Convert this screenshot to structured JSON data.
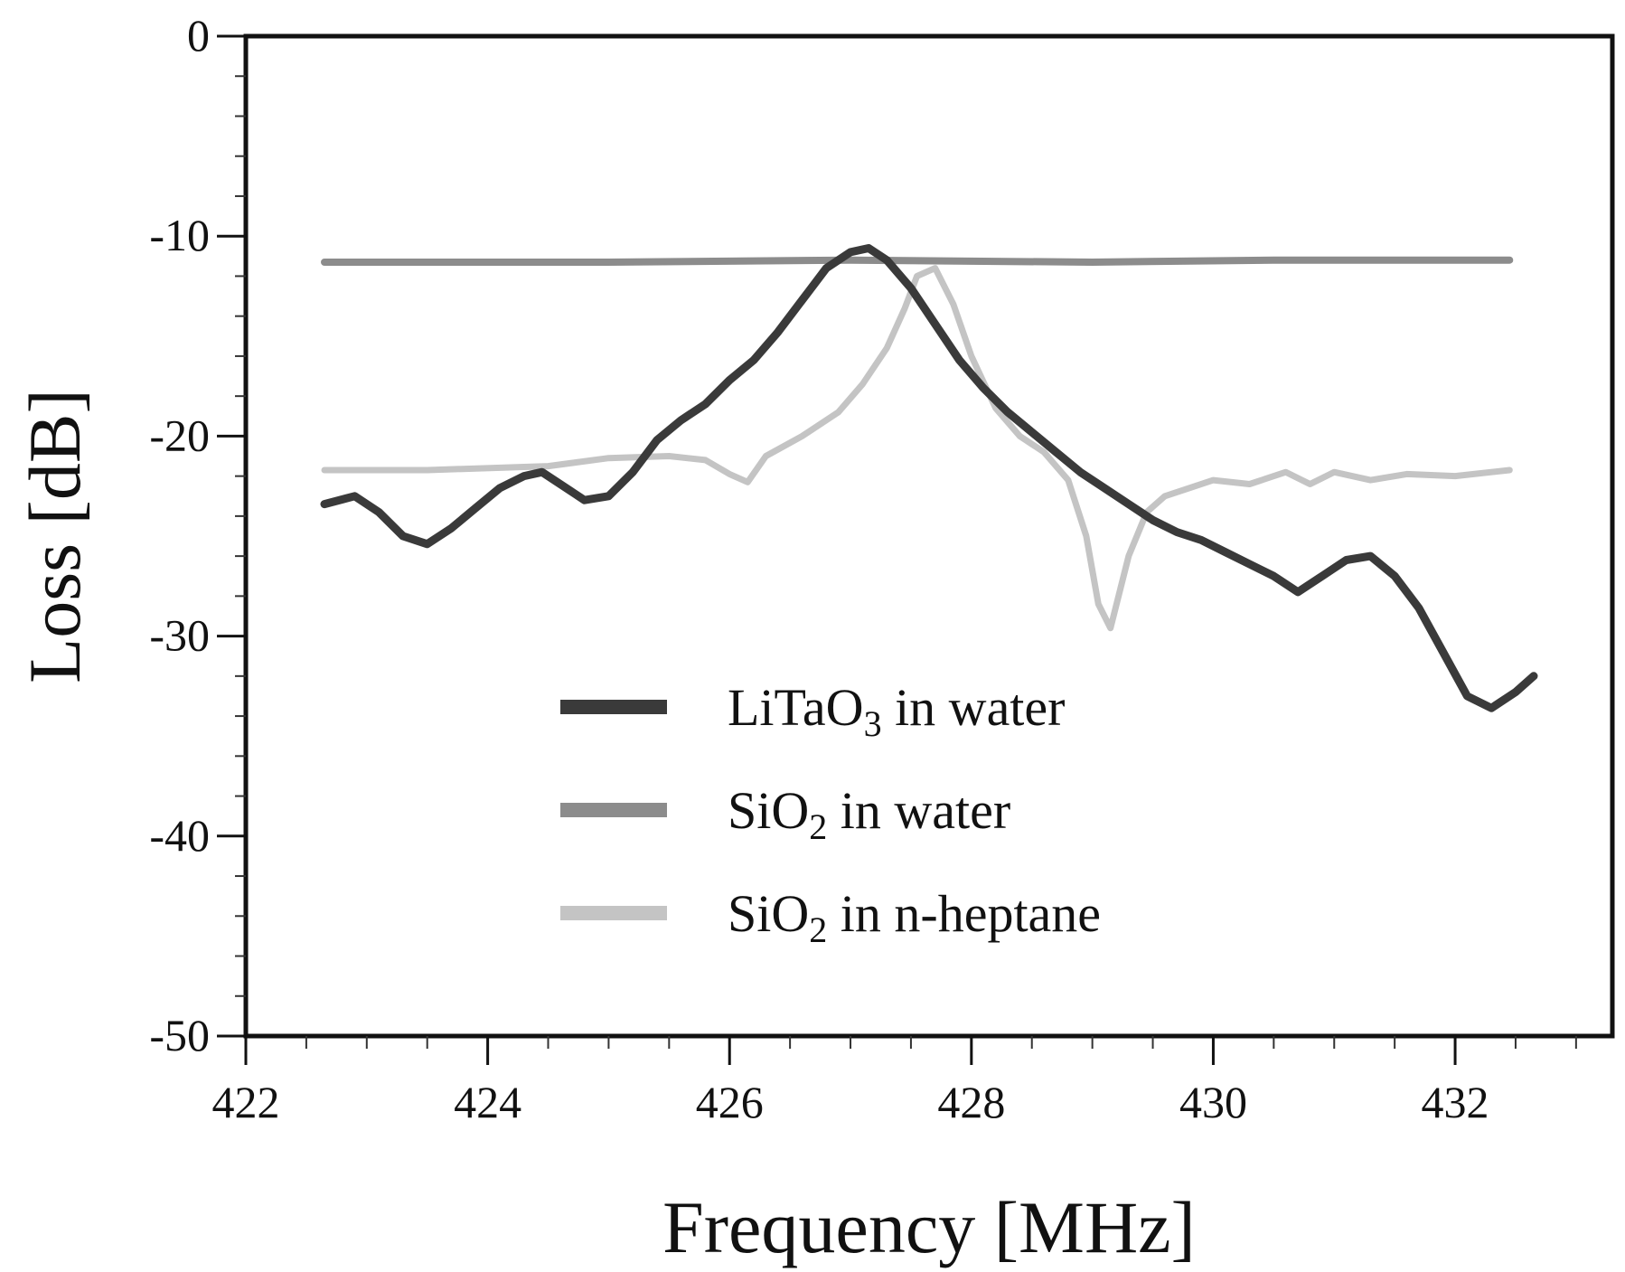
{
  "chart_data": {
    "type": "line",
    "title": "",
    "xlabel": "Frequency [MHz]",
    "ylabel": "Loss [dB]",
    "xlim": [
      422,
      433.3
    ],
    "ylim": [
      -50,
      0
    ],
    "xticks": [
      422,
      424,
      426,
      428,
      430,
      432
    ],
    "xtick_labels": [
      "422",
      "424",
      "426",
      "428",
      "430",
      "432"
    ],
    "yticks": [
      0,
      -10,
      -20,
      -30,
      -40,
      -50
    ],
    "ytick_labels": [
      "0",
      "-10",
      "-20",
      "-30",
      "-40",
      "-50"
    ],
    "grid": false,
    "legend_position": "lower-center",
    "series": [
      {
        "name": "LiTaO3 in water",
        "label_parts": [
          "LiTaO",
          "3",
          " in water"
        ],
        "color": "#3a3a3a",
        "x": [
          422.65,
          422.9,
          423.1,
          423.3,
          423.5,
          423.7,
          423.9,
          424.1,
          424.3,
          424.45,
          424.6,
          424.8,
          425.0,
          425.2,
          425.4,
          425.6,
          425.8,
          426.0,
          426.2,
          426.4,
          426.6,
          426.8,
          427.0,
          427.15,
          427.3,
          427.5,
          427.7,
          427.9,
          428.1,
          428.3,
          428.5,
          428.7,
          428.9,
          429.1,
          429.3,
          429.5,
          429.7,
          429.9,
          430.1,
          430.3,
          430.5,
          430.7,
          430.9,
          431.1,
          431.3,
          431.5,
          431.7,
          431.9,
          432.1,
          432.3,
          432.5,
          432.65
        ],
        "values": [
          -23.4,
          -23.0,
          -23.8,
          -25.0,
          -25.4,
          -24.6,
          -23.6,
          -22.6,
          -22.0,
          -21.8,
          -22.4,
          -23.2,
          -23.0,
          -21.8,
          -20.2,
          -19.2,
          -18.4,
          -17.2,
          -16.2,
          -14.8,
          -13.2,
          -11.6,
          -10.8,
          -10.6,
          -11.2,
          -12.6,
          -14.4,
          -16.2,
          -17.6,
          -18.8,
          -19.8,
          -20.8,
          -21.8,
          -22.6,
          -23.4,
          -24.2,
          -24.8,
          -25.2,
          -25.8,
          -26.4,
          -27.0,
          -27.8,
          -27.0,
          -26.2,
          -26.0,
          -27.0,
          -28.6,
          -30.8,
          -33.0,
          -33.6,
          -32.8,
          -32.0
        ]
      },
      {
        "name": "SiO2 in water",
        "label_parts": [
          "SiO",
          "2",
          " in water"
        ],
        "color": "#8c8c8c",
        "x": [
          422.65,
          425.0,
          427.0,
          429.0,
          430.5,
          432.45
        ],
        "values": [
          -11.3,
          -11.3,
          -11.2,
          -11.3,
          -11.2,
          -11.2
        ]
      },
      {
        "name": "SiO2 in n-heptane",
        "label_parts": [
          "SiO",
          "2",
          " in n-heptane"
        ],
        "color": "#c4c4c4",
        "x": [
          422.65,
          423.5,
          424.5,
          425.0,
          425.5,
          425.8,
          426.0,
          426.15,
          426.3,
          426.6,
          426.9,
          427.1,
          427.3,
          427.45,
          427.55,
          427.7,
          427.85,
          428.0,
          428.2,
          428.4,
          428.6,
          428.8,
          428.95,
          429.05,
          429.15,
          429.3,
          429.45,
          429.6,
          429.8,
          430.0,
          430.3,
          430.6,
          430.8,
          431.0,
          431.3,
          431.6,
          432.0,
          432.45
        ],
        "values": [
          -21.7,
          -21.7,
          -21.5,
          -21.1,
          -21.0,
          -21.2,
          -21.9,
          -22.3,
          -21.0,
          -20.0,
          -18.8,
          -17.4,
          -15.6,
          -13.6,
          -12.0,
          -11.6,
          -13.4,
          -16.0,
          -18.6,
          -20.0,
          -20.8,
          -22.2,
          -25.0,
          -28.4,
          -29.6,
          -26.0,
          -23.8,
          -23.0,
          -22.6,
          -22.2,
          -22.4,
          -21.8,
          -22.4,
          -21.8,
          -22.2,
          -21.9,
          -22.0,
          -21.7
        ]
      }
    ]
  }
}
